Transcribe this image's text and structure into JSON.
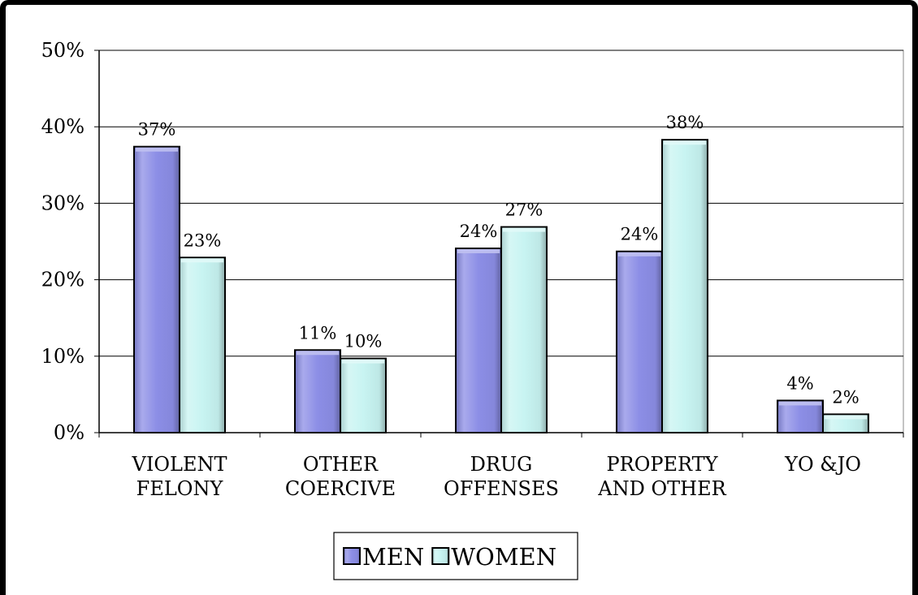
{
  "chart_data": {
    "type": "bar",
    "categories": [
      [
        "VIOLENT",
        "FELONY"
      ],
      [
        "OTHER",
        "COERCIVE"
      ],
      [
        "DRUG",
        "OFFENSES"
      ],
      [
        "PROPERTY",
        "AND OTHER"
      ],
      [
        "YO &JO"
      ]
    ],
    "series": [
      {
        "name": "MEN",
        "values": [
          37.4,
          10.8,
          24.1,
          23.7,
          4.2
        ],
        "labels": [
          "37%",
          "11%",
          "24%",
          "24%",
          "4%"
        ],
        "color": "#8c8ee6"
      },
      {
        "name": "WOMEN",
        "values": [
          22.9,
          9.7,
          26.9,
          38.3,
          2.4
        ],
        "labels": [
          "23%",
          "10%",
          "27%",
          "38%",
          "2%"
        ],
        "color": "#c8f4f2"
      }
    ],
    "ylim": [
      0,
      50
    ],
    "yticks": [
      0,
      10,
      20,
      30,
      40,
      50
    ],
    "ytick_labels": [
      "0%",
      "10%",
      "20%",
      "30%",
      "40%",
      "50%"
    ],
    "grid": true,
    "legend_position": "bottom-center",
    "title": "",
    "xlabel": "",
    "ylabel": ""
  }
}
